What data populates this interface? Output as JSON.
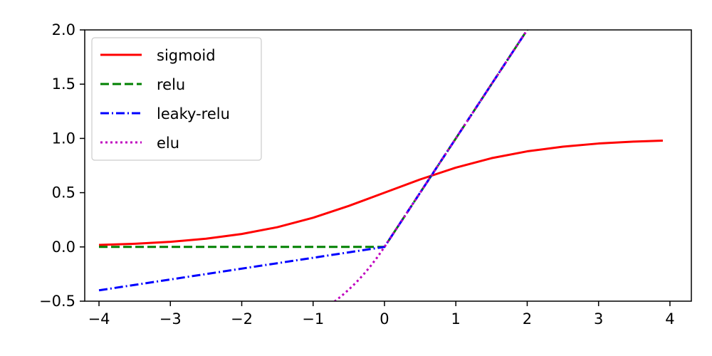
{
  "chart_data": {
    "type": "line",
    "title": "",
    "xlabel": "",
    "ylabel": "",
    "xlim": [
      -4.2,
      4.3
    ],
    "ylim": [
      -0.5,
      2.0
    ],
    "x_ticks": [
      -4,
      -3,
      -2,
      -1,
      0,
      1,
      2,
      3,
      4
    ],
    "x_tick_labels": [
      "−4",
      "−3",
      "−2",
      "−1",
      "0",
      "1",
      "2",
      "3",
      "4"
    ],
    "y_ticks": [
      -0.5,
      0.0,
      0.5,
      1.0,
      1.5,
      2.0
    ],
    "y_tick_labels": [
      "−0.5",
      "0.0",
      "0.5",
      "1.0",
      "1.5",
      "2.0"
    ],
    "grid": false,
    "legend_position": "top-left",
    "series": [
      {
        "name": "sigmoid",
        "color": "#ff0000",
        "dash": "solid",
        "x": [
          -4.0,
          -3.5,
          -3.0,
          -2.5,
          -2.0,
          -1.5,
          -1.0,
          -0.5,
          0.0,
          0.5,
          1.0,
          1.5,
          2.0,
          2.5,
          3.0,
          3.5,
          3.9
        ],
        "y": [
          0.018,
          0.029,
          0.047,
          0.076,
          0.119,
          0.182,
          0.269,
          0.378,
          0.5,
          0.622,
          0.731,
          0.818,
          0.881,
          0.924,
          0.953,
          0.971,
          0.98
        ]
      },
      {
        "name": "relu",
        "color": "#008000",
        "dash": "dashed",
        "x": [
          -4.0,
          0.0,
          2.1
        ],
        "y": [
          0.0,
          0.0,
          2.1
        ]
      },
      {
        "name": "leaky-relu",
        "color": "#0000ff",
        "dash": "dashdot",
        "x": [
          -4.0,
          0.0,
          2.1
        ],
        "y": [
          -0.4,
          0.0,
          2.1
        ]
      },
      {
        "name": "elu",
        "color": "#bf00bf",
        "dash": "dotted",
        "x": [
          -0.7,
          -0.6,
          -0.5,
          -0.4,
          -0.3,
          -0.2,
          -0.1,
          0.0,
          2.1
        ],
        "y": [
          -0.503,
          -0.451,
          -0.393,
          -0.33,
          -0.259,
          -0.181,
          -0.095,
          0.0,
          2.1
        ]
      }
    ]
  }
}
